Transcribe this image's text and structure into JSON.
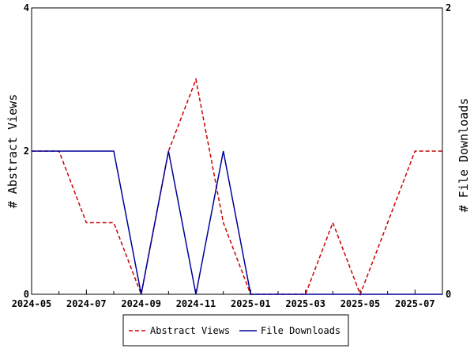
{
  "chart_data": {
    "type": "line",
    "x": [
      "2024-05",
      "2024-06",
      "2024-07",
      "2024-08",
      "2024-09",
      "2024-10",
      "2024-11",
      "2024-12",
      "2025-01",
      "2025-02",
      "2025-03",
      "2025-04",
      "2025-05",
      "2025-06",
      "2025-07",
      "2025-08"
    ],
    "x_tick_labels": [
      "2024-05",
      "2024-07",
      "2024-09",
      "2024-11",
      "2025-01",
      "2025-03",
      "2025-05",
      "2025-07"
    ],
    "series": [
      {
        "name": "Abstract Views",
        "axis": "left",
        "color": "#cc0000",
        "dash": "dashed",
        "values": [
          2,
          2,
          1,
          1,
          0,
          2,
          3,
          1,
          0,
          0,
          0,
          1,
          0,
          1,
          2,
          2
        ]
      },
      {
        "name": "File Downloads",
        "axis": "right",
        "color": "#000099",
        "dash": "solid",
        "values": [
          1,
          1,
          1,
          1,
          0,
          1,
          0,
          1,
          0,
          0,
          0,
          0,
          0,
          0,
          0,
          0
        ]
      }
    ],
    "ylabel_left": "# Abstract Views",
    "ylabel_right": "# File Downloads",
    "ylim_left": [
      0,
      4
    ],
    "yticks_left": [
      0,
      2,
      4
    ],
    "ylim_right": [
      0,
      2
    ],
    "yticks_right": [
      0,
      2
    ],
    "legend_position": "bottom",
    "grid": false
  }
}
